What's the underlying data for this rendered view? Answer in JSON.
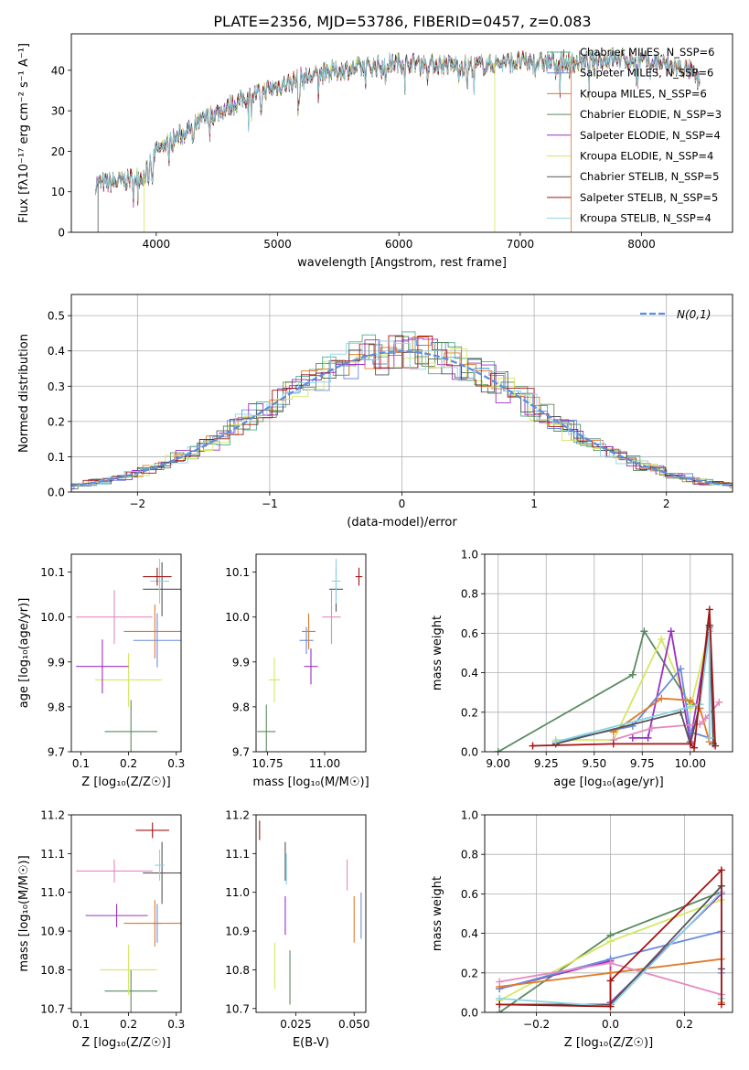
{
  "title": "PLATE=2356, MJD=53786, FIBERID=0457, z=0.083",
  "colors": {
    "chab_miles": "#4dae8a",
    "salp_miles": "#6a8cdc",
    "krou_miles": "#e07a2a",
    "chab_elodie": "#5a8a62",
    "salp_elodie": "#9b30c0",
    "krou_elodie": "#d4e860",
    "chab_stelib": "#555555",
    "salp_stelib": "#a31414",
    "krou_stelib": "#8ad4e4",
    "pink": "#e48ac0",
    "normal": "#5b8fe0"
  },
  "chart_data": [
    {
      "name": "spectrum",
      "type": "line",
      "xlabel": "wavelength [Angstrom, rest frame]",
      "ylabel": "Flux [fλ10⁻¹⁷ erg cm⁻² s⁻¹ A⁻¹]",
      "xlim": [
        3300,
        8750
      ],
      "ylim": [
        0,
        49
      ],
      "xticks": [
        4000,
        5000,
        6000,
        7000,
        8000
      ],
      "yticks": [
        0,
        10,
        20,
        30,
        40
      ],
      "legend": [
        "Chabrier MILES, N_SSP=6",
        "Salpeter MILES, N_SSP=6",
        "Kroupa MILES, N_SSP=6",
        "Chabrier ELODIE, N_SSP=3",
        "Salpeter ELODIE, N_SSP=4",
        "Kroupa ELODIE, N_SSP=4",
        "Chabrier STELIB, N_SSP=5",
        "Salpeter STELIB, N_SSP=5",
        "Kroupa STELIB, N_SSP=4"
      ],
      "continuum_x": [
        3500,
        3700,
        3900,
        4000,
        4200,
        4400,
        4600,
        4800,
        5000,
        5200,
        5500,
        5800,
        6000,
        6300,
        6600,
        6900,
        7200,
        7500,
        7800,
        8100,
        8400,
        8500
      ],
      "continuum_y": [
        12,
        12.5,
        14,
        20,
        24,
        28,
        31,
        34,
        36,
        38,
        40,
        41,
        42,
        41.5,
        41,
        42,
        42,
        42,
        43,
        42,
        40,
        36
      ],
      "legend_loc": "upper right"
    },
    {
      "name": "residuals",
      "type": "step",
      "xlabel": "(data-model)/error",
      "ylabel": "Normed distribution",
      "xlim": [
        -2.5,
        2.5
      ],
      "ylim": [
        0,
        0.56
      ],
      "xticks": [
        -2,
        -1,
        0,
        1,
        2
      ],
      "yticks": [
        0.0,
        0.1,
        0.2,
        0.3,
        0.4,
        0.5
      ],
      "legend": [
        "N(0,1)"
      ],
      "legend_loc": "upper right",
      "grid": true
    },
    {
      "name": "age-vs-Z",
      "type": "errorbar",
      "xlabel": "Z [log₁₀(Z/Z☉)]",
      "ylabel": "age  [log₁₀(age/yr)]",
      "xlim": [
        0.08,
        0.31
      ],
      "ylim": [
        9.7,
        10.14
      ],
      "xticks": [
        0.1,
        0.2,
        0.3
      ],
      "yticks": [
        9.7,
        9.8,
        9.9,
        10.0,
        10.1
      ],
      "points": [
        {
          "c": "chab_elodie",
          "x": 0.205,
          "xe": 0.055,
          "y": 9.745,
          "ye": 0.07
        },
        {
          "c": "krou_elodie",
          "x": 0.2,
          "xe": 0.07,
          "y": 9.86,
          "ye": 0.06
        },
        {
          "c": "salp_elodie",
          "x": 0.145,
          "xe": 0.055,
          "y": 9.89,
          "ye": 0.06
        },
        {
          "c": "salp_miles",
          "x": 0.26,
          "xe": 0.05,
          "y": 9.948,
          "ye": 0.06
        },
        {
          "c": "krou_miles",
          "x": 0.255,
          "xe": 0.065,
          "y": 9.968,
          "ye": 0.06
        },
        {
          "c": "pink",
          "x": 0.17,
          "xe": 0.08,
          "y": 10.0,
          "ye": 0.06
        },
        {
          "c": "chab_stelib",
          "x": 0.27,
          "xe": 0.04,
          "y": 10.062,
          "ye": 0.06
        },
        {
          "c": "krou_stelib",
          "x": 0.265,
          "xe": 0.02,
          "y": 10.08,
          "ye": 0.05
        },
        {
          "c": "salp_stelib",
          "x": 0.26,
          "xe": 0.03,
          "y": 10.09,
          "ye": 0.02
        }
      ]
    },
    {
      "name": "age-vs-mass",
      "type": "errorbar",
      "xlabel": "mass [log₁₀(M/M☉)]",
      "ylabel": "",
      "xlim": [
        10.7,
        11.18
      ],
      "ylim": [
        9.7,
        10.14
      ],
      "xticks": [
        10.75,
        11.0
      ],
      "yticks": [
        9.7,
        9.8,
        9.9,
        10.0,
        10.1
      ],
      "points": [
        {
          "c": "chab_elodie",
          "x": 10.745,
          "xe": 0.04,
          "y": 9.745,
          "ye": 0.06
        },
        {
          "c": "krou_elodie",
          "x": 10.78,
          "xe": 0.025,
          "y": 9.86,
          "ye": 0.05
        },
        {
          "c": "salp_elodie",
          "x": 10.94,
          "xe": 0.03,
          "y": 9.89,
          "ye": 0.04
        },
        {
          "c": "salp_miles",
          "x": 10.92,
          "xe": 0.03,
          "y": 9.948,
          "ye": 0.03
        },
        {
          "c": "krou_miles",
          "x": 10.93,
          "xe": 0.03,
          "y": 9.968,
          "ye": 0.04
        },
        {
          "c": "pink",
          "x": 11.03,
          "xe": 0.04,
          "y": 10.0,
          "ye": 0.06
        },
        {
          "c": "chab_stelib",
          "x": 11.05,
          "xe": 0.03,
          "y": 10.062,
          "ye": 0.05
        },
        {
          "c": "krou_stelib",
          "x": 11.05,
          "xe": 0.02,
          "y": 10.08,
          "ye": 0.05
        },
        {
          "c": "salp_stelib",
          "x": 11.15,
          "xe": 0.015,
          "y": 10.09,
          "ye": 0.02
        }
      ]
    },
    {
      "name": "weight-vs-age",
      "type": "line",
      "xlabel": "age  [log₁₀(age/yr)]",
      "ylabel": "mass weight",
      "xlim": [
        8.93,
        10.22
      ],
      "ylim": [
        0,
        1
      ],
      "xticks": [
        9.0,
        9.25,
        9.5,
        9.75,
        10.0
      ],
      "yticks": [
        0.0,
        0.2,
        0.4,
        0.6,
        0.8,
        1.0
      ],
      "grid": true,
      "series": [
        {
          "c": "chab_elodie",
          "x": [
            9.0,
            9.7,
            9.76,
            10.0,
            10.0
          ],
          "y": [
            0.0,
            0.39,
            0.61,
            0.24,
            0.24
          ]
        },
        {
          "c": "krou_elodie",
          "x": [
            9.3,
            9.6,
            9.85,
            10.0,
            10.1
          ],
          "y": [
            0.06,
            0.06,
            0.57,
            0.22,
            0.62
          ]
        },
        {
          "c": "salp_elodie",
          "x": [
            9.7,
            9.78,
            9.9,
            10.0,
            10.1
          ],
          "y": [
            0.07,
            0.07,
            0.61,
            0.05,
            0.64
          ]
        },
        {
          "c": "salp_miles",
          "x": [
            9.3,
            9.7,
            9.95,
            10.0,
            10.1,
            10.1
          ],
          "y": [
            0.05,
            0.13,
            0.42,
            0.1,
            0.07,
            0.63
          ]
        },
        {
          "c": "krou_miles",
          "x": [
            9.6,
            9.85,
            10.0,
            10.05,
            10.1
          ],
          "y": [
            0.1,
            0.27,
            0.26,
            0.22,
            0.05
          ]
        },
        {
          "c": "pink",
          "x": [
            9.6,
            9.8,
            10.05,
            10.08,
            10.15
          ],
          "y": [
            0.06,
            0.12,
            0.14,
            0.17,
            0.25
          ]
        },
        {
          "c": "chab_stelib",
          "x": [
            9.3,
            9.95,
            10.0,
            10.05,
            10.1,
            10.12
          ],
          "y": [
            0.04,
            0.2,
            0.04,
            0.24,
            0.64,
            0.04
          ]
        },
        {
          "c": "krou_stelib",
          "x": [
            9.3,
            10.05,
            10.1,
            10.1
          ],
          "y": [
            0.05,
            0.24,
            0.61,
            0.07
          ]
        },
        {
          "c": "salp_stelib",
          "x": [
            9.18,
            9.6,
            10.0,
            10.02,
            10.1,
            10.13
          ],
          "y": [
            0.03,
            0.04,
            0.04,
            0.02,
            0.72,
            0.03
          ]
        }
      ]
    },
    {
      "name": "mass-vs-Z",
      "type": "errorbar",
      "xlabel": "Z [log₁₀(Z/Z☉)]",
      "ylabel": "mass [log₁₀(M/M☉)]",
      "xlim": [
        0.08,
        0.31
      ],
      "ylim": [
        10.69,
        11.2
      ],
      "xticks": [
        0.1,
        0.2,
        0.3
      ],
      "yticks": [
        10.7,
        10.8,
        10.9,
        11.0,
        11.1,
        11.2
      ],
      "points": [
        {
          "c": "chab_elodie",
          "x": 0.205,
          "xe": 0.055,
          "y": 10.745,
          "ye": 0.055
        },
        {
          "c": "krou_elodie",
          "x": 0.2,
          "xe": 0.06,
          "y": 10.8,
          "ye": 0.065
        },
        {
          "c": "salp_elodie",
          "x": 0.175,
          "xe": 0.065,
          "y": 10.94,
          "ye": 0.03
        },
        {
          "c": "salp_miles",
          "x": 0.26,
          "xe": 0.01,
          "y": 10.92,
          "ye": 0.05
        },
        {
          "c": "krou_miles",
          "x": 0.255,
          "xe": 0.065,
          "y": 10.92,
          "ye": 0.06
        },
        {
          "c": "pink",
          "x": 0.17,
          "xe": 0.08,
          "y": 11.055,
          "ye": 0.03
        },
        {
          "c": "chab_stelib",
          "x": 0.27,
          "xe": 0.04,
          "y": 11.05,
          "ye": 0.08
        },
        {
          "c": "krou_stelib",
          "x": 0.265,
          "xe": 0.01,
          "y": 11.07,
          "ye": 0.04
        },
        {
          "c": "salp_stelib",
          "x": 0.25,
          "xe": 0.035,
          "y": 11.16,
          "ye": 0.02
        }
      ]
    },
    {
      "name": "mass-vs-EBV",
      "type": "errorbar",
      "xlabel": "E(B-V)",
      "ylabel": "",
      "xlim": [
        0.008,
        0.055
      ],
      "ylim": [
        10.69,
        11.2
      ],
      "xticks": [
        0.025,
        0.05
      ],
      "yticks": [
        10.7,
        10.8,
        10.9,
        11.0,
        11.1,
        11.2
      ],
      "points": [
        {
          "c": "salp_stelib",
          "x": 0.0095,
          "xe": 0,
          "y": 11.16,
          "ye": 0.025
        },
        {
          "c": "chab_stelib",
          "x": 0.0205,
          "xe": 0,
          "y": 11.08,
          "ye": 0.05
        },
        {
          "c": "krou_stelib",
          "x": 0.021,
          "xe": 0,
          "y": 11.06,
          "ye": 0.04
        },
        {
          "c": "salp_elodie",
          "x": 0.0205,
          "xe": 0,
          "y": 10.94,
          "ye": 0.05
        },
        {
          "c": "krou_elodie",
          "x": 0.016,
          "xe": 0,
          "y": 10.81,
          "ye": 0.06
        },
        {
          "c": "chab_elodie",
          "x": 0.0225,
          "xe": 0,
          "y": 10.78,
          "ye": 0.07
        },
        {
          "c": "pink",
          "x": 0.047,
          "xe": 0,
          "y": 11.045,
          "ye": 0.04
        },
        {
          "c": "krou_miles",
          "x": 0.05,
          "xe": 0,
          "y": 10.93,
          "ye": 0.06
        },
        {
          "c": "salp_miles",
          "x": 0.053,
          "xe": 0,
          "y": 10.94,
          "ye": 0.06
        }
      ]
    },
    {
      "name": "weight-vs-Z",
      "type": "line",
      "xlabel": "Z [log₁₀(Z/Z☉)]",
      "ylabel": "mass weight",
      "xlim": [
        -0.34,
        0.33
      ],
      "ylim": [
        0,
        1
      ],
      "xticks": [
        -0.2,
        0.0,
        0.2
      ],
      "yticks": [
        0.0,
        0.2,
        0.4,
        0.6,
        0.8,
        1.0
      ],
      "grid": true,
      "series": [
        {
          "c": "chab_elodie",
          "x": [
            -0.3,
            0.0,
            0.3
          ],
          "y": [
            0.0,
            0.39,
            0.61
          ]
        },
        {
          "c": "krou_elodie",
          "x": [
            -0.3,
            0.0,
            0.3
          ],
          "y": [
            0.06,
            0.36,
            0.57
          ]
        },
        {
          "c": "salp_elodie",
          "x": [
            -0.3,
            0.0,
            0.0,
            0.3
          ],
          "y": [
            0.12,
            0.26,
            0.05,
            0.6
          ]
        },
        {
          "c": "salp_miles",
          "x": [
            -0.3,
            0.0,
            0.3,
            0.3
          ],
          "y": [
            0.12,
            0.27,
            0.41,
            0.2
          ]
        },
        {
          "c": "krou_miles",
          "x": [
            -0.3,
            0.0,
            0.3,
            0.3
          ],
          "y": [
            0.13,
            0.2,
            0.27,
            0.05
          ]
        },
        {
          "c": "pink",
          "x": [
            -0.3,
            0.0,
            0.3
          ],
          "y": [
            0.155,
            0.25,
            0.09
          ]
        },
        {
          "c": "chab_stelib",
          "x": [
            -0.3,
            0.0,
            0.3,
            0.3
          ],
          "y": [
            0.04,
            0.04,
            0.64,
            0.22
          ]
        },
        {
          "c": "krou_stelib",
          "x": [
            -0.3,
            0.0,
            0.3,
            0.3
          ],
          "y": [
            0.07,
            0.03,
            0.61,
            0.07
          ]
        },
        {
          "c": "salp_stelib",
          "x": [
            -0.3,
            0.0,
            0.0,
            0.3,
            0.3
          ],
          "y": [
            0.04,
            0.03,
            0.16,
            0.72,
            0.04
          ]
        }
      ]
    }
  ]
}
